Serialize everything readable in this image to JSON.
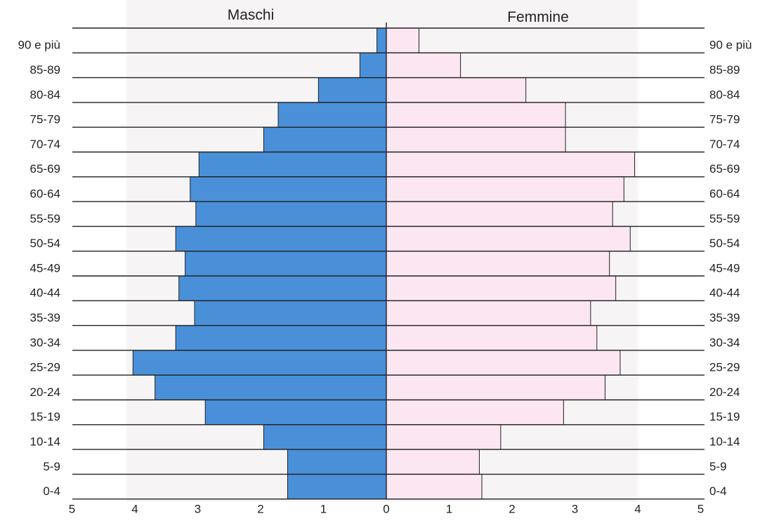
{
  "chart_data": {
    "type": "bar",
    "subtype": "population-pyramid",
    "categories": [
      "90 e più",
      "85-89",
      "80-84",
      "75-79",
      "70-74",
      "65-69",
      "60-64",
      "55-59",
      "50-54",
      "45-49",
      "40-44",
      "35-39",
      "30-34",
      "25-29",
      "20-24",
      "15-19",
      "10-14",
      "5-9",
      "0-4"
    ],
    "series": [
      {
        "name": "Maschi",
        "color": "#4a90d9",
        "values": [
          0.15,
          0.42,
          1.08,
          1.72,
          1.95,
          2.98,
          3.12,
          3.03,
          3.35,
          3.2,
          3.3,
          3.05,
          3.35,
          4.03,
          3.68,
          2.88,
          1.95,
          1.57,
          1.57
        ]
      },
      {
        "name": "Femmine",
        "color": "#fbe6f2",
        "values": [
          0.52,
          1.18,
          2.22,
          2.85,
          2.85,
          3.95,
          3.78,
          3.6,
          3.88,
          3.55,
          3.65,
          3.25,
          3.35,
          3.72,
          3.48,
          2.82,
          1.82,
          1.48,
          1.52
        ]
      }
    ],
    "x_ticks_left": [
      "5",
      "4",
      "3",
      "2",
      "1"
    ],
    "x_ticks_right": [
      "0",
      "1",
      "2",
      "3",
      "4",
      "5"
    ],
    "xlim": [
      0,
      5
    ],
    "grid": false,
    "background_band_color": "#f7f4f6"
  }
}
